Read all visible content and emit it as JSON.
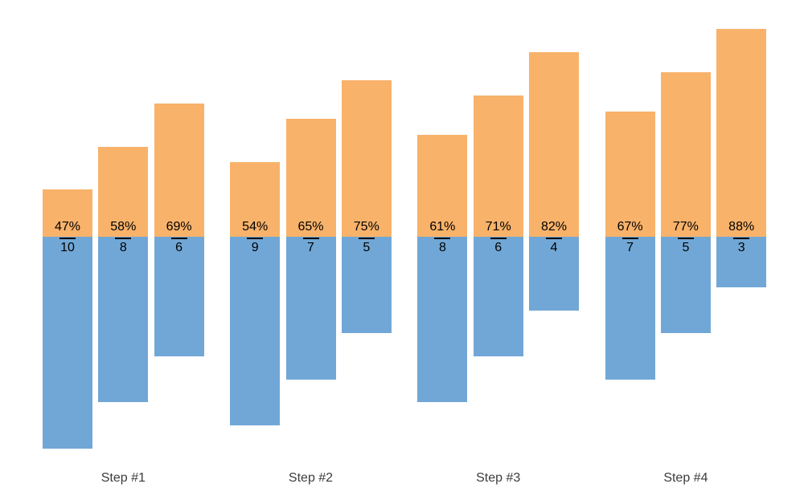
{
  "chart_data": {
    "type": "bar",
    "variant": "diverging-grouped",
    "title": "",
    "xlabel": "",
    "ylabel": "",
    "grid": false,
    "axes_visible": false,
    "legend": null,
    "categories": [
      "Step #1",
      "Step #2",
      "Step #3",
      "Step #4"
    ],
    "series_up": {
      "name": "percent",
      "color": "#F8B26A",
      "unit": "%",
      "baseline_value": 35
    },
    "series_down": {
      "name": "count",
      "color": "#71A7D6"
    },
    "groups": [
      {
        "label": "Step #1",
        "bars": [
          {
            "percent": 47,
            "count": 10,
            "percent_label": "47%",
            "count_label": "10"
          },
          {
            "percent": 58,
            "count": 8,
            "percent_label": "58%",
            "count_label": "8"
          },
          {
            "percent": 69,
            "count": 6,
            "percent_label": "69%",
            "count_label": "6"
          }
        ]
      },
      {
        "label": "Step #2",
        "bars": [
          {
            "percent": 54,
            "count": 9,
            "percent_label": "54%",
            "count_label": "9"
          },
          {
            "percent": 65,
            "count": 7,
            "percent_label": "65%",
            "count_label": "7"
          },
          {
            "percent": 75,
            "count": 5,
            "percent_label": "75%",
            "count_label": "5"
          }
        ]
      },
      {
        "label": "Step #3",
        "bars": [
          {
            "percent": 61,
            "count": 8,
            "percent_label": "61%",
            "count_label": "8"
          },
          {
            "percent": 71,
            "count": 6,
            "percent_label": "71%",
            "count_label": "6"
          },
          {
            "percent": 82,
            "count": 4,
            "percent_label": "82%",
            "count_label": "4"
          }
        ]
      },
      {
        "label": "Step #4",
        "bars": [
          {
            "percent": 67,
            "count": 7,
            "percent_label": "67%",
            "count_label": "7"
          },
          {
            "percent": 77,
            "count": 5,
            "percent_label": "77%",
            "count_label": "5"
          },
          {
            "percent": 88,
            "count": 3,
            "percent_label": "88%",
            "count_label": "3"
          }
        ]
      }
    ],
    "colors": {
      "up_bar": "#F8B26A",
      "down_bar": "#71A7D6",
      "label_text": "#000000",
      "category_text": "#3c3c3c",
      "fraction_line": "#000000",
      "background": "#ffffff"
    }
  }
}
